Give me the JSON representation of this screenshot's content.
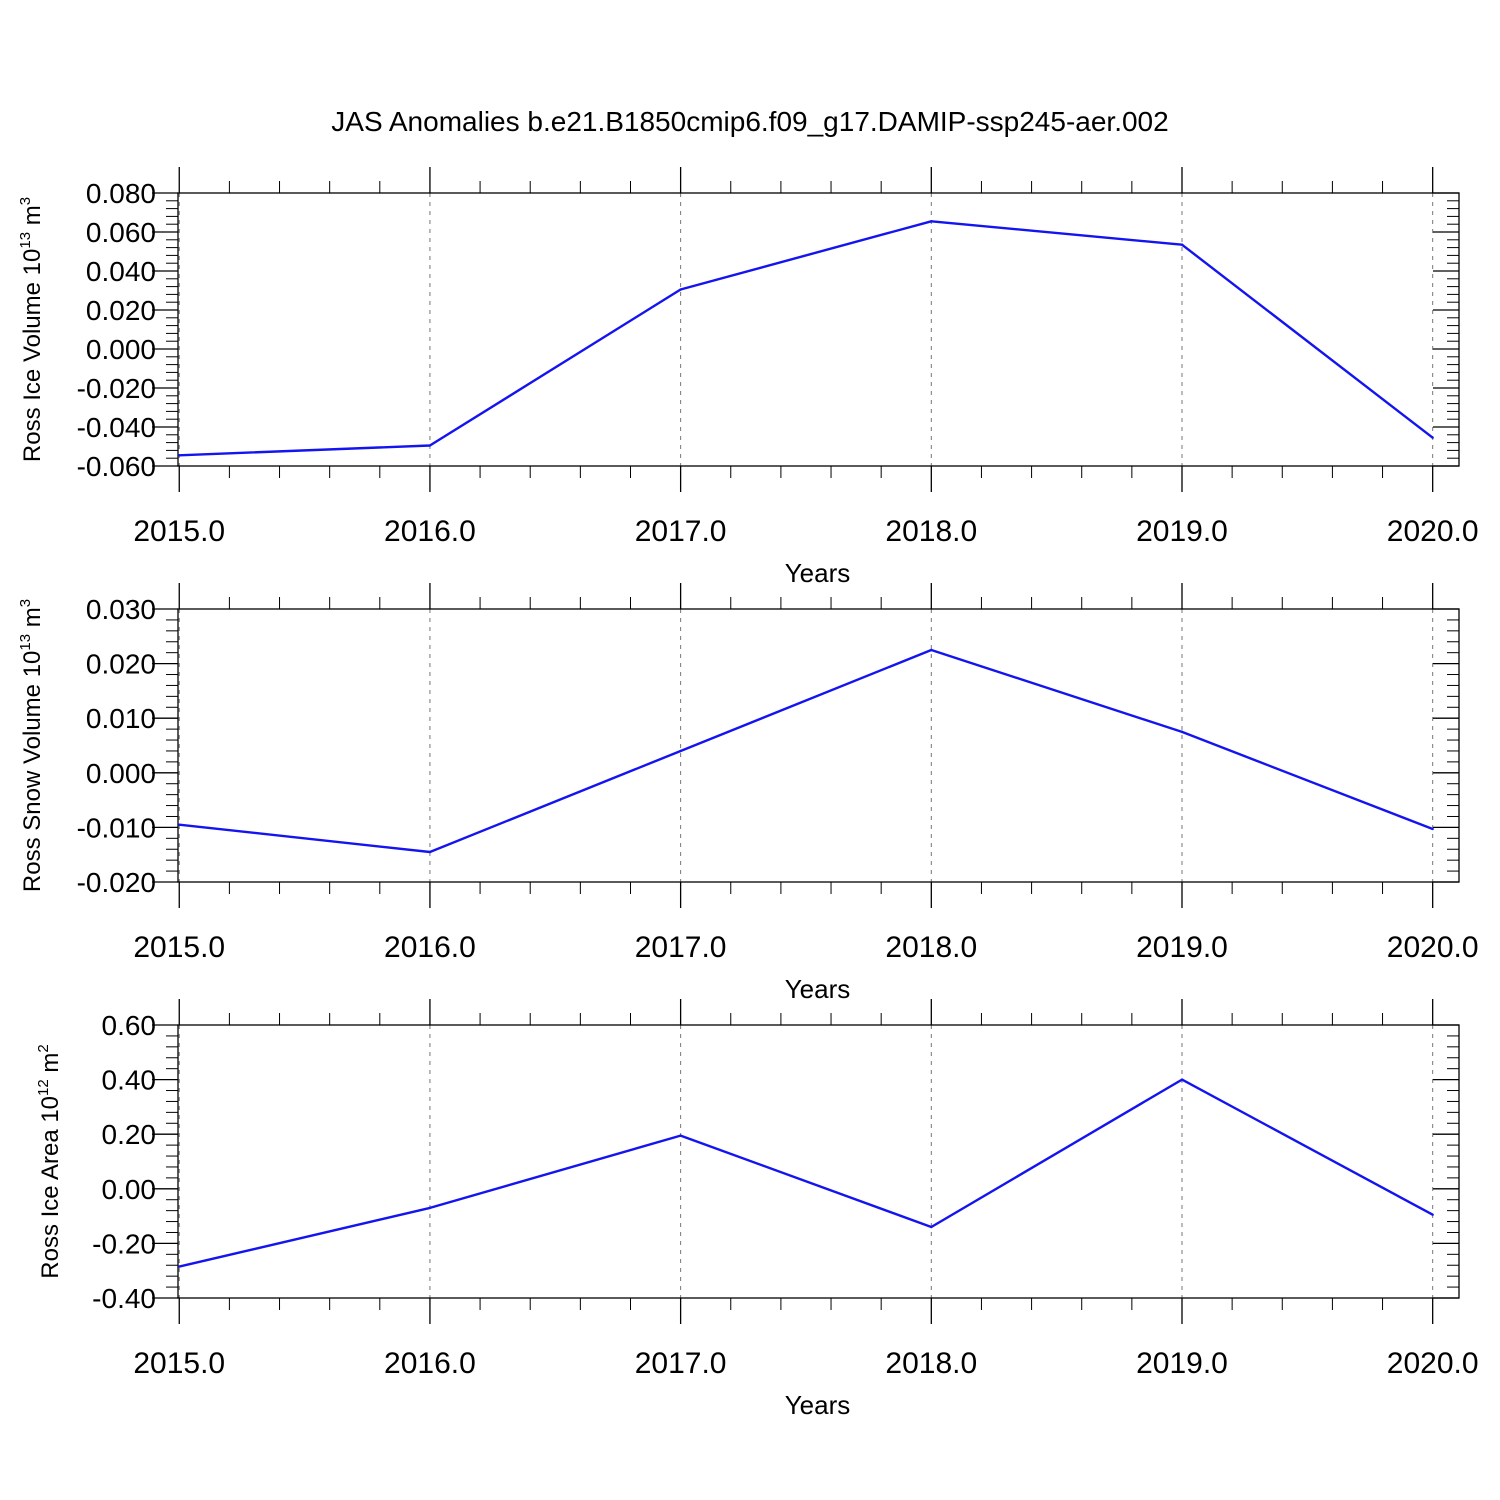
{
  "title": "JAS Anomalies b.e21.B1850cmip6.f09_g17.DAMIP-ssp245-aer.002",
  "line_color": "#1414f0",
  "chart_data": [
    {
      "type": "line",
      "ylabel": {
        "text": "Ross Ice Volume 10",
        "exponent": "13",
        "unit": "m",
        "unit_exponent": "3"
      },
      "xlabel": "Years",
      "x": [
        2015,
        2016,
        2017,
        2018,
        2019,
        2020
      ],
      "y": [
        -0.0545,
        -0.0495,
        0.0305,
        0.0655,
        0.0535,
        -0.0455
      ],
      "xlim": [
        2014.995,
        2020.105
      ],
      "ylim": [
        -0.06,
        0.08
      ],
      "xticks": [
        2015,
        2016,
        2017,
        2018,
        2019,
        2020
      ],
      "xtick_labels": [
        "2015.0",
        "2016.0",
        "2017.0",
        "2018.0",
        "2019.0",
        "2020.0"
      ],
      "yticks": [
        -0.06,
        -0.04,
        -0.02,
        0.0,
        0.02,
        0.04,
        0.06,
        0.08
      ],
      "ytick_labels": [
        "-0.060",
        "-0.040",
        "-0.020",
        "0.000",
        "0.020",
        "0.040",
        "0.060",
        "0.080"
      ],
      "grid": "vertical-dashed"
    },
    {
      "type": "line",
      "ylabel": {
        "text": "Ross Snow Volume 10",
        "exponent": "13",
        "unit": "m",
        "unit_exponent": "3"
      },
      "xlabel": "Years",
      "x": [
        2015,
        2016,
        2017,
        2018,
        2019,
        2020
      ],
      "y": [
        -0.0095,
        -0.0145,
        0.004,
        0.0225,
        0.0075,
        -0.0103
      ],
      "xlim": [
        2014.995,
        2020.105
      ],
      "ylim": [
        -0.02,
        0.03
      ],
      "xticks": [
        2015,
        2016,
        2017,
        2018,
        2019,
        2020
      ],
      "xtick_labels": [
        "2015.0",
        "2016.0",
        "2017.0",
        "2018.0",
        "2019.0",
        "2020.0"
      ],
      "yticks": [
        -0.02,
        -0.01,
        0.0,
        0.01,
        0.02,
        0.03
      ],
      "ytick_labels": [
        "-0.020",
        "-0.010",
        "0.000",
        "0.010",
        "0.020",
        "0.030"
      ],
      "grid": "vertical-dashed"
    },
    {
      "type": "line",
      "ylabel": {
        "text": "Ross Ice Area 10",
        "exponent": "12",
        "unit": "m",
        "unit_exponent": "2"
      },
      "xlabel": "Years",
      "x": [
        2015,
        2016,
        2017,
        2018,
        2019,
        2020
      ],
      "y": [
        -0.285,
        -0.07,
        0.195,
        -0.14,
        0.4,
        -0.095
      ],
      "xlim": [
        2014.995,
        2020.105
      ],
      "ylim": [
        -0.4,
        0.6
      ],
      "xticks": [
        2015,
        2016,
        2017,
        2018,
        2019,
        2020
      ],
      "xtick_labels": [
        "2015.0",
        "2016.0",
        "2017.0",
        "2018.0",
        "2019.0",
        "2020.0"
      ],
      "yticks": [
        -0.4,
        -0.2,
        0.0,
        0.2,
        0.4,
        0.6
      ],
      "ytick_labels": [
        "-0.40",
        "-0.20",
        "0.00",
        "0.20",
        "0.40",
        "0.60"
      ],
      "grid": "vertical-dashed"
    }
  ]
}
